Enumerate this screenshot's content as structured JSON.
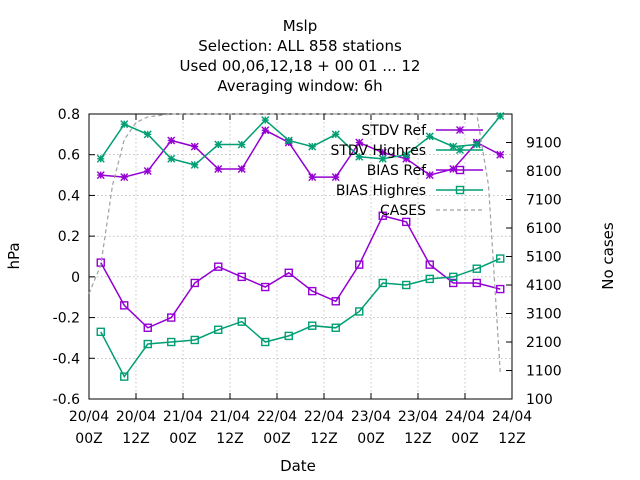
{
  "chart_data": {
    "type": "line",
    "title_lines": [
      "Mslp",
      "Selection: ALL    858 stations",
      "Used  00,06,12,18 + 00 01 ... 12",
      "Averaging window:  6h"
    ],
    "xlabel": "Date",
    "ylabel": "hPa",
    "y2label": "No cases",
    "xlim": [
      0,
      108
    ],
    "ylim": [
      -0.6,
      0.8
    ],
    "y2lim": [
      100,
      10100
    ],
    "x_ticks": [
      {
        "pos": 0,
        "line1": "20/04",
        "line2": "00Z"
      },
      {
        "pos": 12,
        "line1": "20/04",
        "line2": "12Z"
      },
      {
        "pos": 24,
        "line1": "21/04",
        "line2": "00Z"
      },
      {
        "pos": 36,
        "line1": "21/04",
        "line2": "12Z"
      },
      {
        "pos": 48,
        "line1": "22/04",
        "line2": "00Z"
      },
      {
        "pos": 60,
        "line1": "22/04",
        "line2": "12Z"
      },
      {
        "pos": 72,
        "line1": "23/04",
        "line2": "00Z"
      },
      {
        "pos": 84,
        "line1": "23/04",
        "line2": "12Z"
      },
      {
        "pos": 96,
        "line1": "24/04",
        "line2": "00Z"
      },
      {
        "pos": 108,
        "line1": "24/04",
        "line2": "12Z"
      }
    ],
    "y_ticks": [
      -0.6,
      -0.4,
      -0.2,
      0,
      0.2,
      0.4,
      0.6,
      0.8
    ],
    "y_tick_labels": [
      "-0.6",
      "-0.4",
      "-0.2",
      "0",
      "0.2",
      "0.4",
      "0.6",
      "0.8"
    ],
    "y2_ticks": [
      100,
      1100,
      2100,
      3100,
      4100,
      5100,
      6100,
      7100,
      8100,
      9100
    ],
    "y2_tick_labels": [
      "100",
      "1100",
      "2100",
      "3100",
      "4100",
      "5100",
      "6100",
      "7100",
      "8100",
      "9100"
    ],
    "grid": true,
    "legend_position": "top-right",
    "x": [
      3,
      9,
      15,
      21,
      27,
      33,
      39,
      45,
      51,
      57,
      63,
      69,
      75,
      81,
      87,
      93,
      99,
      105
    ],
    "series": [
      {
        "name": "STDV Ref",
        "color": "#9400d3",
        "marker": "star",
        "axis": "y",
        "values": [
          0.5,
          0.49,
          0.52,
          0.67,
          0.64,
          0.53,
          0.53,
          0.72,
          0.66,
          0.49,
          0.49,
          0.66,
          0.61,
          0.58,
          0.5,
          0.53,
          0.66,
          0.6
        ]
      },
      {
        "name": "STDV Highres",
        "color": "#009e73",
        "marker": "star",
        "axis": "y",
        "values": [
          0.58,
          0.75,
          0.7,
          0.58,
          0.55,
          0.65,
          0.65,
          0.77,
          0.67,
          0.64,
          0.7,
          0.59,
          0.58,
          0.6,
          0.69,
          0.64,
          0.65,
          0.79
        ]
      },
      {
        "name": "BIAS Ref",
        "color": "#9400d3",
        "marker": "box",
        "axis": "y",
        "values": [
          0.07,
          -0.14,
          -0.25,
          -0.2,
          -0.03,
          0.05,
          0.0,
          -0.05,
          0.02,
          -0.07,
          -0.12,
          0.06,
          0.3,
          0.27,
          0.06,
          -0.03,
          -0.03,
          -0.06
        ]
      },
      {
        "name": "BIAS Highres",
        "color": "#009e73",
        "marker": "box",
        "axis": "y",
        "values": [
          -0.27,
          -0.49,
          -0.33,
          -0.32,
          -0.31,
          -0.26,
          -0.22,
          -0.32,
          -0.29,
          -0.24,
          -0.25,
          -0.17,
          -0.03,
          -0.04,
          -0.01,
          0.0,
          0.04,
          0.09
        ]
      },
      {
        "name": "CASES",
        "color": "#a0a0a0",
        "marker": "none",
        "axis": "y2",
        "dash": true,
        "x": [
          0,
          3,
          6,
          9,
          12,
          15,
          21,
          27,
          33,
          39,
          45,
          51,
          57,
          63,
          69,
          75,
          81,
          87,
          93,
          99,
          102,
          105
        ],
        "values": [
          3800,
          4800,
          7600,
          9200,
          9800,
          10000,
          10100,
          10100,
          10100,
          10100,
          10100,
          10100,
          10100,
          10100,
          10100,
          10100,
          10100,
          10100,
          10100,
          10100,
          7600,
          1000
        ]
      }
    ]
  }
}
